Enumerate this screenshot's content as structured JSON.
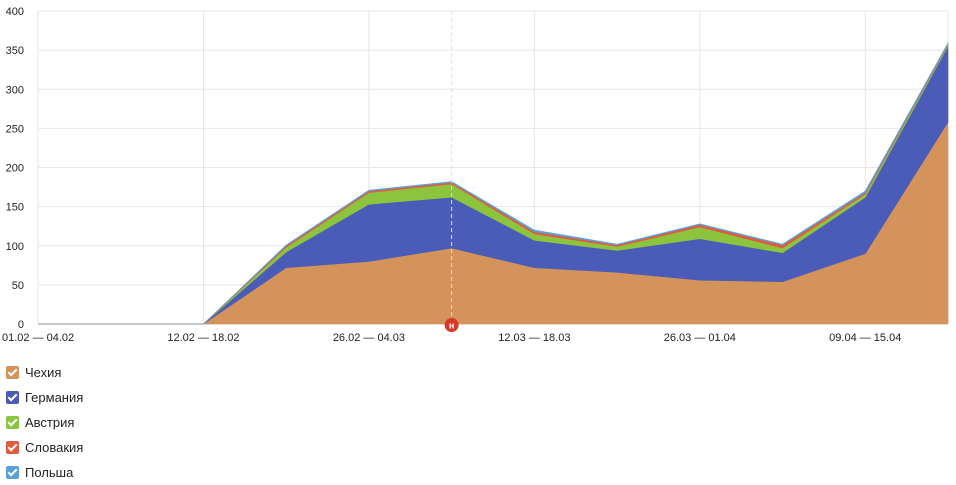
{
  "chart_data": {
    "type": "area",
    "stacked": true,
    "x_tick_labels": [
      "01.02 — 04.02",
      "12.02 — 18.02",
      "26.02 — 04.03",
      "12.03 — 18.03",
      "26.03 — 01.04",
      "09.04 — 15.04"
    ],
    "ylim": [
      0,
      400
    ],
    "yticks": [
      0,
      50,
      100,
      150,
      200,
      250,
      300,
      350,
      400
    ],
    "grid": true,
    "legend_position": "bottom-left",
    "series": [
      {
        "name": "Чехия",
        "color": "#d4935a",
        "values": [
          0,
          0,
          0,
          72,
          80,
          97,
          72,
          66,
          56,
          54,
          90,
          258
        ]
      },
      {
        "name": "Германия",
        "color": "#4b5bb8",
        "values": [
          0,
          0,
          0,
          20,
          73,
          65,
          35,
          28,
          53,
          37,
          72,
          97
        ]
      },
      {
        "name": "Австрия",
        "color": "#8cc43e",
        "values": [
          0,
          0,
          0,
          6,
          15,
          17,
          8,
          5,
          15,
          6,
          4,
          2
        ]
      },
      {
        "name": "Словакия",
        "color": "#e05b3f",
        "values": [
          0,
          0,
          0,
          2,
          2,
          2,
          3,
          2,
          3,
          4,
          2,
          1
        ]
      },
      {
        "name": "Польша",
        "color": "#5aa0d8",
        "values": [
          0,
          0,
          0,
          1,
          1,
          1,
          2,
          1,
          1,
          1,
          2,
          1
        ]
      }
    ],
    "marker": {
      "label": "н",
      "color": "#d83a2a",
      "at_point": 5
    }
  }
}
